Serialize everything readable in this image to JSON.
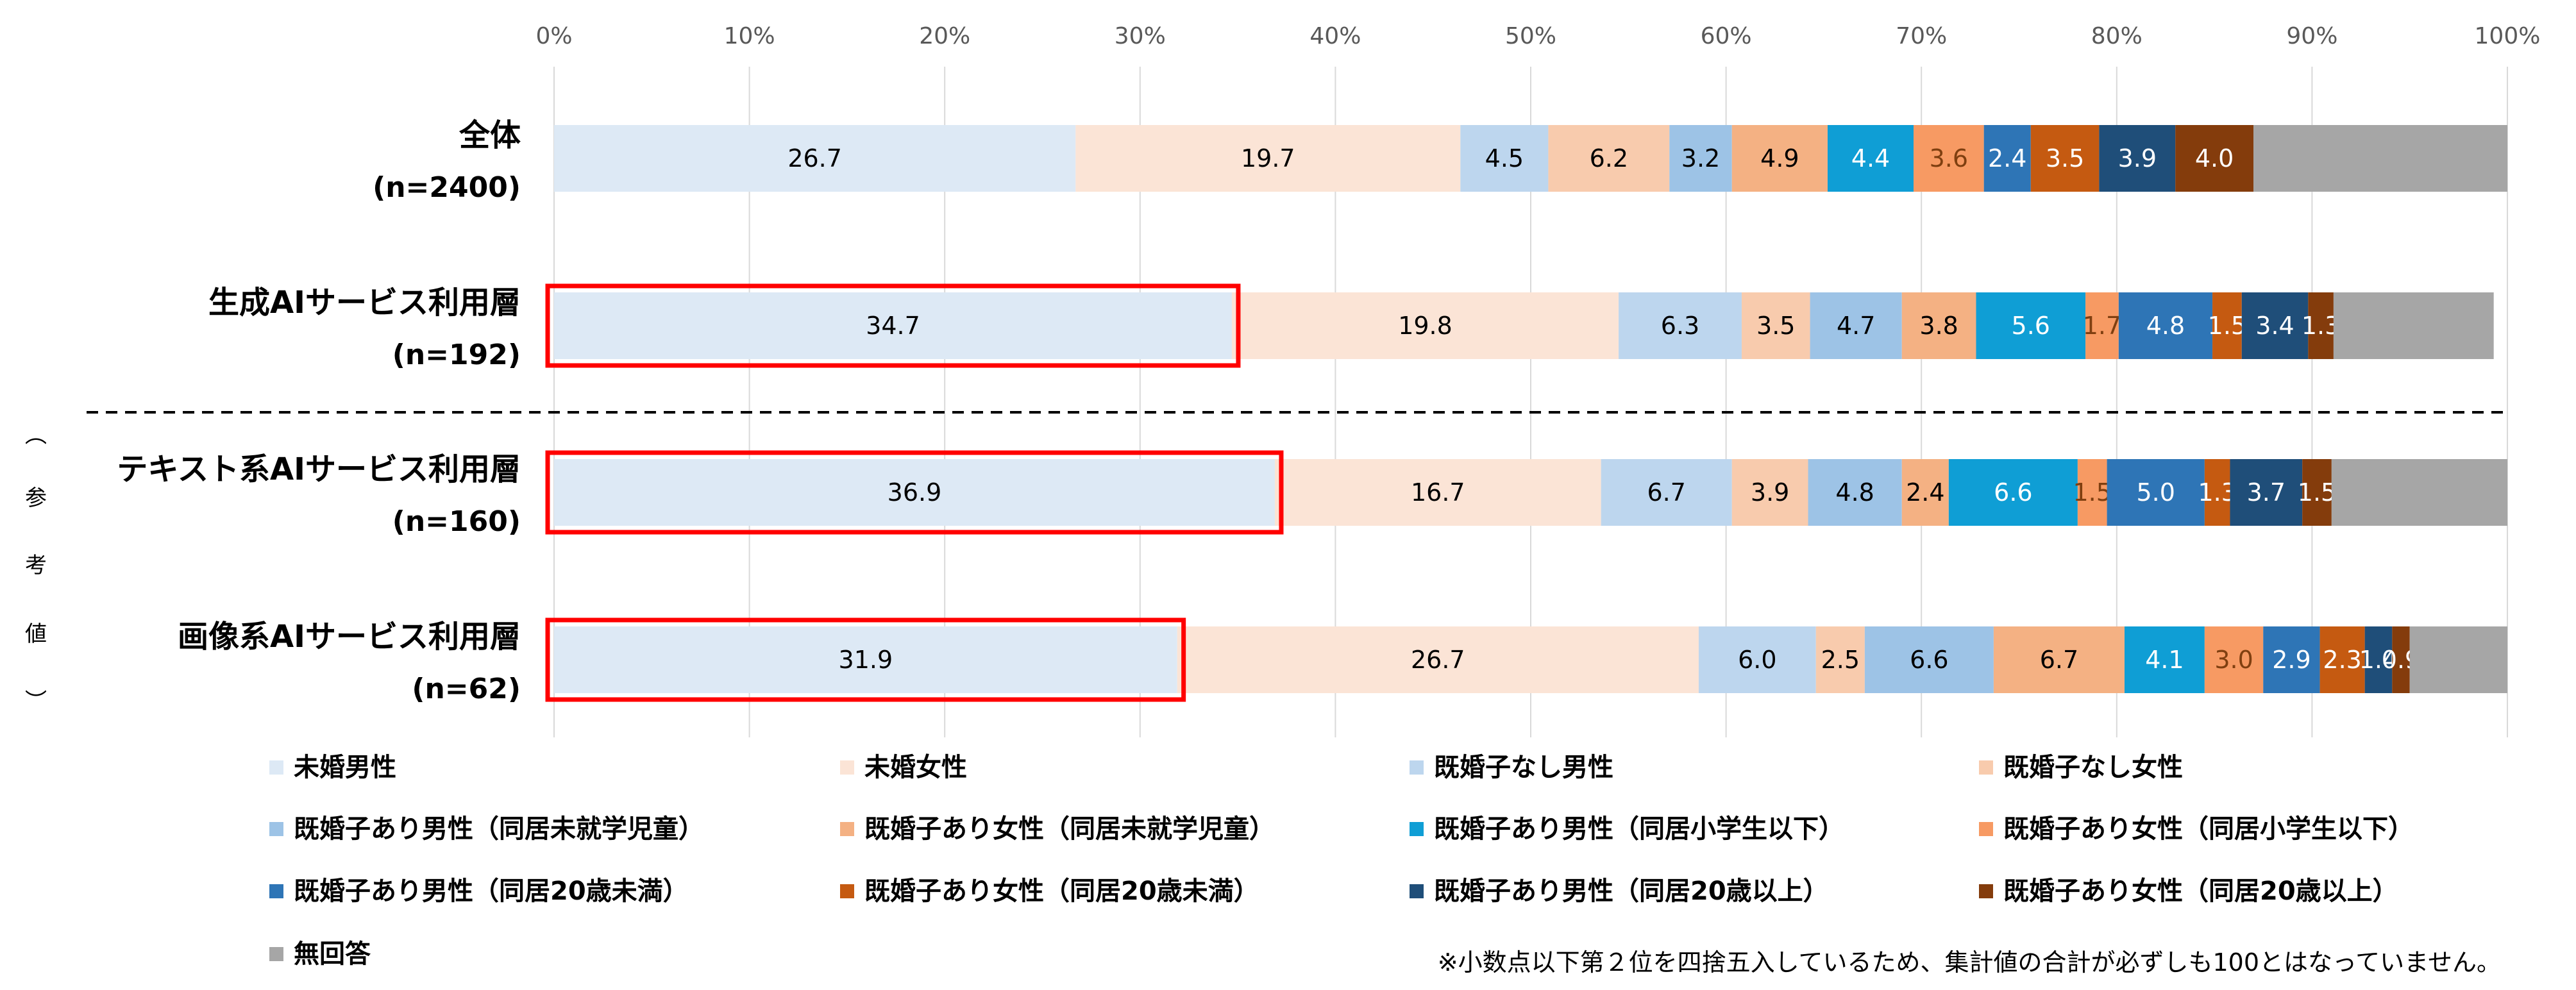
{
  "chart_data": {
    "type": "bar",
    "orientation": "horizontal-stacked-100",
    "xlim": [
      0,
      100
    ],
    "x_ticks": [
      "0%",
      "10%",
      "20%",
      "30%",
      "40%",
      "50%",
      "60%",
      "70%",
      "80%",
      "90%",
      "100%"
    ],
    "grid": true,
    "categories": [
      {
        "name": "全体",
        "n": "(n=2400)",
        "highlight": false
      },
      {
        "name": "生成AIサービス利用層",
        "n": "(n=192)",
        "highlight": true
      },
      {
        "name": "テキスト系AIサービス利用層",
        "n": "(n=160)",
        "highlight": true
      },
      {
        "name": "画像系AIサービス利用層",
        "n": "(n=62)",
        "highlight": true
      }
    ],
    "reference_label": [
      "︵",
      "参",
      "考",
      "値",
      "︶"
    ],
    "series": [
      {
        "name": "未婚男性",
        "color": "#dde9f5",
        "label_color": "#000000",
        "values": [
          26.7,
          34.7,
          36.9,
          31.9
        ]
      },
      {
        "name": "未婚女性",
        "color": "#fbe4d6",
        "label_color": "#000000",
        "values": [
          19.7,
          19.8,
          16.7,
          26.7
        ]
      },
      {
        "name": "既婚子なし男性",
        "color": "#bdd6ee",
        "label_color": "#000000",
        "values": [
          4.5,
          6.3,
          6.7,
          6.0
        ]
      },
      {
        "name": "既婚子なし女性",
        "color": "#f8cbad",
        "label_color": "#000000",
        "values": [
          6.2,
          3.5,
          3.9,
          2.5
        ]
      },
      {
        "name": "既婚子あり男性（同居未就学児童）",
        "color": "#9dc3e6",
        "label_color": "#000000",
        "values": [
          3.2,
          4.7,
          4.8,
          6.6
        ]
      },
      {
        "name": "既婚子あり女性（同居未就学児童）",
        "color": "#f4b183",
        "label_color": "#000000",
        "values": [
          4.9,
          3.8,
          2.4,
          6.7
        ]
      },
      {
        "name": "既婚子あり男性（同居小学生以下）",
        "color": "#0f9ed5",
        "label_color": "#ffffff",
        "values": [
          4.4,
          5.6,
          6.6,
          4.1
        ]
      },
      {
        "name": "既婚子あり女性（同居小学生以下）",
        "color": "#f79a63",
        "label_color": "#7f3f10",
        "values": [
          3.6,
          1.7,
          1.5,
          3.0
        ]
      },
      {
        "name": "既婚子あり男性（同居20歳未満）",
        "color": "#2e75b6",
        "label_color": "#ffffff",
        "values": [
          2.4,
          4.8,
          5.0,
          2.9
        ]
      },
      {
        "name": "既婚子あり女性（同居20歳未満）",
        "color": "#c55a11",
        "label_color": "#ffffff",
        "values": [
          3.5,
          1.5,
          1.3,
          2.3
        ]
      },
      {
        "name": "既婚子あり男性（同居20歳以上）",
        "color": "#1f4e79",
        "label_color": "#ffffff",
        "values": [
          3.9,
          3.4,
          3.7,
          1.4
        ]
      },
      {
        "name": "既婚子あり女性（同居20歳以上）",
        "color": "#843c0c",
        "label_color": "#ffffff",
        "values": [
          4.0,
          1.3,
          1.5,
          0.9
        ]
      },
      {
        "name": "無回答",
        "color": "#a6a6a6",
        "label_color": "#000000",
        "values": [
          13.0,
          8.2,
          10.2,
          5.1
        ],
        "show_labels": false
      }
    ],
    "note": "※小数点以下第２位を四捨五入しているため、集計値の合計が必ずしも100とはなっていません。"
  }
}
